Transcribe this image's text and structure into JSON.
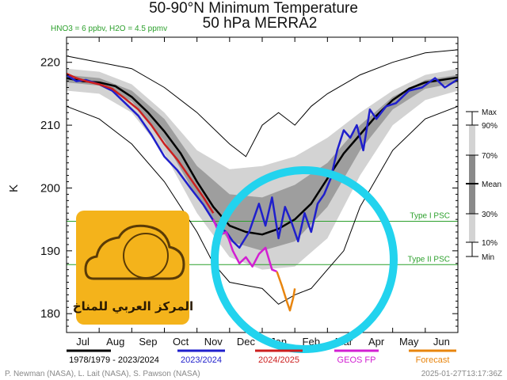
{
  "chart_data": {
    "type": "line",
    "title": "50-90°N Minimum Temperature",
    "subtitle": "50 hPa   MERRA2",
    "annotation": "HNO3 = 6 ppbv, H2O = 4.5 ppmv",
    "ylabel": "K",
    "ylim": [
      177,
      224
    ],
    "y_ticks": [
      180,
      190,
      200,
      210,
      220
    ],
    "x_ticks": [
      "Jul",
      "Aug",
      "Sep",
      "Oct",
      "Nov",
      "Dec",
      "Jan",
      "Feb",
      "Mar",
      "Apr",
      "May",
      "Jun"
    ],
    "x_unit": "month index (0 = 1 Jul, 12 = 1 Jul next year)",
    "xlim": [
      0,
      12
    ],
    "thresholds": [
      {
        "label": "Type I PSC",
        "value": 194.7,
        "color": "#2ca02c"
      },
      {
        "label": "Type II PSC",
        "value": 187.8,
        "color": "#2ca02c"
      }
    ],
    "series": [
      {
        "name": "1978/1979 - 2023/2024",
        "color": "#000000",
        "points": [
          [
            0,
            217.5
          ],
          [
            0.5,
            217.0
          ],
          [
            1,
            216.8
          ],
          [
            1.5,
            216.2
          ],
          [
            2,
            214.5
          ],
          [
            2.5,
            212
          ],
          [
            3,
            209
          ],
          [
            3.5,
            205.5
          ],
          [
            4,
            201
          ],
          [
            4.5,
            197
          ],
          [
            5,
            194
          ],
          [
            5.5,
            193
          ],
          [
            6,
            192.6
          ],
          [
            6.5,
            193.5
          ],
          [
            7,
            195
          ],
          [
            7.5,
            197.5
          ],
          [
            8,
            201.5
          ],
          [
            8.5,
            205.5
          ],
          [
            9,
            208.5
          ],
          [
            9.5,
            211.5
          ],
          [
            10,
            214
          ],
          [
            10.5,
            215.8
          ],
          [
            11,
            216.8
          ],
          [
            11.5,
            217.2
          ],
          [
            12,
            217.6
          ]
        ]
      },
      {
        "name": "2023/2024",
        "color": "#1f1fcc",
        "points": [
          [
            0,
            218
          ],
          [
            0.3,
            217
          ],
          [
            0.6,
            217.2
          ],
          [
            1,
            216.5
          ],
          [
            1.4,
            215.5
          ],
          [
            1.8,
            213.5
          ],
          [
            2.2,
            211.5
          ],
          [
            2.6,
            208.5
          ],
          [
            3,
            205
          ],
          [
            3.4,
            202.8
          ],
          [
            3.8,
            200
          ],
          [
            4.2,
            197.3
          ],
          [
            4.6,
            194
          ],
          [
            4.9,
            193
          ],
          [
            5.1,
            191.5
          ],
          [
            5.3,
            190.5
          ],
          [
            5.6,
            193
          ],
          [
            5.9,
            197.5
          ],
          [
            6.1,
            194
          ],
          [
            6.3,
            198.5
          ],
          [
            6.5,
            192
          ],
          [
            6.7,
            197
          ],
          [
            6.9,
            194.5
          ],
          [
            7.1,
            191.5
          ],
          [
            7.3,
            196
          ],
          [
            7.5,
            193
          ],
          [
            7.7,
            197.5
          ],
          [
            7.9,
            199
          ],
          [
            8.1,
            201.5
          ],
          [
            8.3,
            206
          ],
          [
            8.5,
            209.2
          ],
          [
            8.7,
            208
          ],
          [
            8.9,
            210
          ],
          [
            9.1,
            206
          ],
          [
            9.3,
            212.5
          ],
          [
            9.5,
            211
          ],
          [
            9.8,
            213
          ],
          [
            10.1,
            213.5
          ],
          [
            10.5,
            215.5
          ],
          [
            10.9,
            216
          ],
          [
            11.3,
            217.5
          ],
          [
            11.6,
            216
          ],
          [
            12,
            217.3
          ]
        ]
      },
      {
        "name": "2024/2025",
        "color": "#cc1f1f",
        "points": [
          [
            0,
            218.2
          ],
          [
            0.3,
            217.5
          ],
          [
            0.6,
            217
          ],
          [
            1,
            216.5
          ],
          [
            1.4,
            215.8
          ],
          [
            1.8,
            214.2
          ],
          [
            2.2,
            212.5
          ],
          [
            2.6,
            210
          ],
          [
            3,
            207
          ],
          [
            3.4,
            204.5
          ],
          [
            3.8,
            201.5
          ],
          [
            4.2,
            198.5
          ],
          [
            4.5,
            196
          ]
        ]
      },
      {
        "name": "GEOS FP",
        "color": "#d21fd2",
        "points": [
          [
            4.5,
            195
          ],
          [
            4.7,
            192.5
          ],
          [
            4.9,
            193
          ],
          [
            5.1,
            190
          ],
          [
            5.3,
            188
          ],
          [
            5.5,
            189
          ],
          [
            5.7,
            187.5
          ],
          [
            5.9,
            189.5
          ],
          [
            6.1,
            190.5
          ],
          [
            6.3,
            187
          ],
          [
            6.45,
            186.7
          ]
        ]
      },
      {
        "name": "Forecast",
        "color": "#e8850e",
        "points": [
          [
            6.45,
            186.7
          ],
          [
            6.6,
            184.5
          ],
          [
            6.75,
            182
          ],
          [
            6.85,
            180.5
          ],
          [
            6.95,
            182.5
          ],
          [
            7.0,
            184
          ]
        ]
      }
    ],
    "bands": [
      {
        "name": "10%-90%",
        "color": "#d3d3d3",
        "upper": [
          [
            0,
            219
          ],
          [
            1,
            218.5
          ],
          [
            2,
            216.5
          ],
          [
            3,
            212
          ],
          [
            4,
            206
          ],
          [
            5,
            203
          ],
          [
            6,
            203.5
          ],
          [
            7,
            205
          ],
          [
            8,
            208
          ],
          [
            9,
            212
          ],
          [
            10,
            215.5
          ],
          [
            11,
            218
          ],
          [
            12,
            219
          ]
        ],
        "lower": [
          [
            0,
            215.5
          ],
          [
            1,
            215
          ],
          [
            2,
            212
          ],
          [
            3,
            205.5
          ],
          [
            4,
            196
          ],
          [
            5,
            189
          ],
          [
            6,
            187
          ],
          [
            7,
            187.5
          ],
          [
            8,
            192
          ],
          [
            9,
            202
          ],
          [
            10,
            210
          ],
          [
            11,
            214
          ],
          [
            12,
            215.5
          ]
        ]
      },
      {
        "name": "30%-70%",
        "color": "#9e9e9e",
        "upper": [
          [
            0,
            218
          ],
          [
            1,
            217.5
          ],
          [
            2,
            215.5
          ],
          [
            3,
            211
          ],
          [
            4,
            203.5
          ],
          [
            5,
            199
          ],
          [
            6,
            198.5
          ],
          [
            7,
            200.5
          ],
          [
            8,
            204
          ],
          [
            9,
            210
          ],
          [
            10,
            214.5
          ],
          [
            11,
            217.2
          ],
          [
            12,
            218
          ]
        ],
        "lower": [
          [
            0,
            216.8
          ],
          [
            1,
            216.3
          ],
          [
            2,
            213.8
          ],
          [
            3,
            207.5
          ],
          [
            4,
            198.5
          ],
          [
            5,
            191.5
          ],
          [
            6,
            190
          ],
          [
            7,
            191.5
          ],
          [
            8,
            197
          ],
          [
            9,
            206
          ],
          [
            10,
            212.5
          ],
          [
            11,
            215.8
          ],
          [
            12,
            216.8
          ]
        ]
      }
    ],
    "extremes": {
      "max": [
        [
          0,
          221
        ],
        [
          1,
          220
        ],
        [
          2,
          219
        ],
        [
          3,
          216
        ],
        [
          4,
          212
        ],
        [
          5,
          207
        ],
        [
          5.5,
          205
        ],
        [
          6,
          210
        ],
        [
          6.5,
          212
        ],
        [
          7,
          210
        ],
        [
          7.5,
          213
        ],
        [
          8,
          215
        ],
        [
          9,
          218
        ],
        [
          10,
          220
        ],
        [
          11,
          221.5
        ],
        [
          12,
          222
        ]
      ],
      "min": [
        [
          0,
          213
        ],
        [
          1,
          211
        ],
        [
          2,
          207
        ],
        [
          3,
          201
        ],
        [
          4,
          193
        ],
        [
          4.5,
          188
        ],
        [
          5,
          185
        ],
        [
          5.5,
          184.5
        ],
        [
          6,
          184
        ],
        [
          6.5,
          181.5
        ],
        [
          7,
          183
        ],
        [
          7.5,
          184
        ],
        [
          8,
          187
        ],
        [
          8.5,
          190
        ],
        [
          9,
          197
        ],
        [
          10,
          206
        ],
        [
          11,
          211
        ],
        [
          12,
          213
        ]
      ]
    },
    "grid": false,
    "legend": "bottom",
    "right_legend_labels": [
      "Max",
      "90%",
      "70%",
      "Mean",
      "30%",
      "10%",
      "Min"
    ]
  },
  "logo_text": "المركز العربي للمناخ",
  "credits": {
    "left": "P. Newman (NASA), L. Lait (NASA), S. Pawson (NASA)",
    "right": "2025-01-27T13:17:36Z"
  },
  "colors": {
    "highlight_circle": "#22d3ee",
    "logo_bg": "#f4b31b"
  }
}
